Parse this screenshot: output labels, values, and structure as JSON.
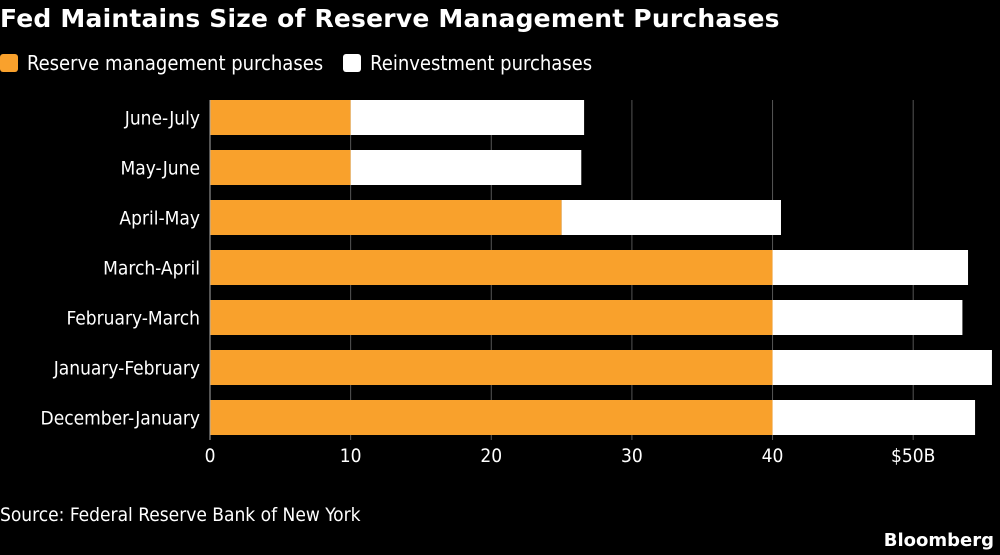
{
  "chart_data": {
    "type": "bar",
    "orientation": "horizontal",
    "stacked": true,
    "title": "Fed Maintains Size of Reserve Management Purchases",
    "categories": [
      "June-July",
      "May-June",
      "April-May",
      "March-April",
      "February-March",
      "January-February",
      "December-January"
    ],
    "series": [
      {
        "name": "Reserve management purchases",
        "color": "#f9a12c",
        "values": [
          10,
          10,
          25,
          40,
          40,
          40,
          40
        ]
      },
      {
        "name": "Reinvestment purchases",
        "color": "#ffffff",
        "values": [
          16.6,
          16.4,
          15.6,
          13.9,
          13.5,
          15.6,
          14.4
        ]
      }
    ],
    "xlim": [
      0,
      55
    ],
    "xticks": [
      0,
      10,
      20,
      30,
      40,
      50
    ],
    "xtick_labels": [
      "0",
      "10",
      "20",
      "30",
      "40",
      "$50B"
    ],
    "grid": true,
    "legend_position": "top-left"
  },
  "source": "Source: Federal Reserve Bank of New York",
  "brand": "Bloomberg"
}
